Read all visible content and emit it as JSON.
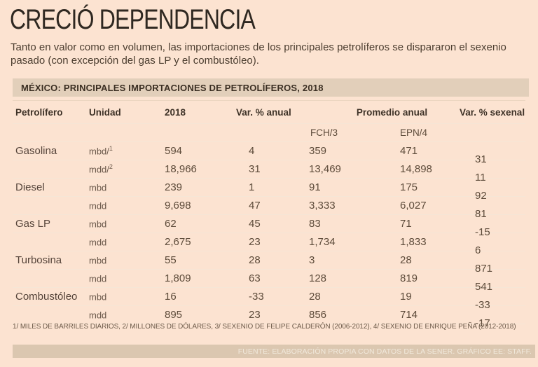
{
  "header": {
    "title": "CRECIÓ DEPENDENCIA",
    "subtitle": "Tanto en valor como en volumen, las importaciones de los principales petrolíferos se dispararon el sexenio pasado (con excepción del gas LP y el combustóleo)."
  },
  "table": {
    "title_bar": "MÉXICO: PRINCIPALES IMPORTACIONES DE PETROLÍFEROS, 2018",
    "columns": {
      "petrolifero": "Petrolífero",
      "unidad": "Unidad",
      "y2018": "2018",
      "var_anual": "Var. % anual",
      "promedio": "Promedio anual",
      "var_sexenal": "Var. % sexenal"
    },
    "sub_headers": {
      "fch": "FCH/3",
      "epn": "EPN/4"
    }
  },
  "chart_data": {
    "type": "table",
    "title": "MÉXICO: PRINCIPALES IMPORTACIONES DE PETROLÍFEROS, 2018",
    "columns": [
      "Petrolífero",
      "Unidad",
      "2018",
      "Var. % anual",
      "Promedio anual FCH/3",
      "Promedio anual EPN/4",
      "Var. % sexenal"
    ],
    "rows": [
      {
        "product": "Gasolina",
        "unit": "mbd/",
        "unit_sup": "1",
        "y2018": "594",
        "var_anual": "4",
        "fch": "359",
        "epn": "471",
        "sexenal": "31"
      },
      {
        "product": "",
        "unit": "mdd/",
        "unit_sup": "2",
        "y2018": "18,966",
        "var_anual": "31",
        "fch": "13,469",
        "epn": "14,898",
        "sexenal": "11"
      },
      {
        "product": "Diesel",
        "unit": "mbd",
        "unit_sup": "",
        "y2018": "239",
        "var_anual": "1",
        "fch": "91",
        "epn": "175",
        "sexenal": "92"
      },
      {
        "product": "",
        "unit": "mdd",
        "unit_sup": "",
        "y2018": "9,698",
        "var_anual": "47",
        "fch": "3,333",
        "epn": "6,027",
        "sexenal": "81"
      },
      {
        "product": "Gas LP",
        "unit": "mbd",
        "unit_sup": "",
        "y2018": "62",
        "var_anual": "45",
        "fch": "83",
        "epn": "71",
        "sexenal": "-15"
      },
      {
        "product": "",
        "unit": "mdd",
        "unit_sup": "",
        "y2018": "2,675",
        "var_anual": "23",
        "fch": "1,734",
        "epn": "1,833",
        "sexenal": "6"
      },
      {
        "product": "Turbosina",
        "unit": "mbd",
        "unit_sup": "",
        "y2018": "55",
        "var_anual": "28",
        "fch": "3",
        "epn": "28",
        "sexenal": "871"
      },
      {
        "product": "",
        "unit": "mdd",
        "unit_sup": "",
        "y2018": "1,809",
        "var_anual": "63",
        "fch": "128",
        "epn": "819",
        "sexenal": "541"
      },
      {
        "product": "Combustóleo",
        "unit": "mbd",
        "unit_sup": "",
        "y2018": "16",
        "var_anual": "-33",
        "fch": "28",
        "epn": "19",
        "sexenal": "-33"
      },
      {
        "product": "",
        "unit": "mdd",
        "unit_sup": "",
        "y2018": "895",
        "var_anual": "23",
        "fch": "856",
        "epn": "714",
        "sexenal": "-17"
      }
    ]
  },
  "footnotes": "1/ MILES DE BARRILES DIARIOS, 2/ MILLONES DE DÓLARES, 3/ SEXENIO DE FELIPE CALDERÓN (2006-2012), 4/ SEXENIO DE ENRIQUE PEÑA (2012-2018)",
  "source": "FUENTE: ELABORACIÓN PROPIA CON DATOS DE LA SENER. GRÁFICO EE: STAFF.",
  "colors": {
    "background": "#fce3d1",
    "title_bar": "#e2cfba",
    "source_bar": "#dbc7b0",
    "text_dark": "#2f2821",
    "text_body": "#5d4b3a"
  }
}
